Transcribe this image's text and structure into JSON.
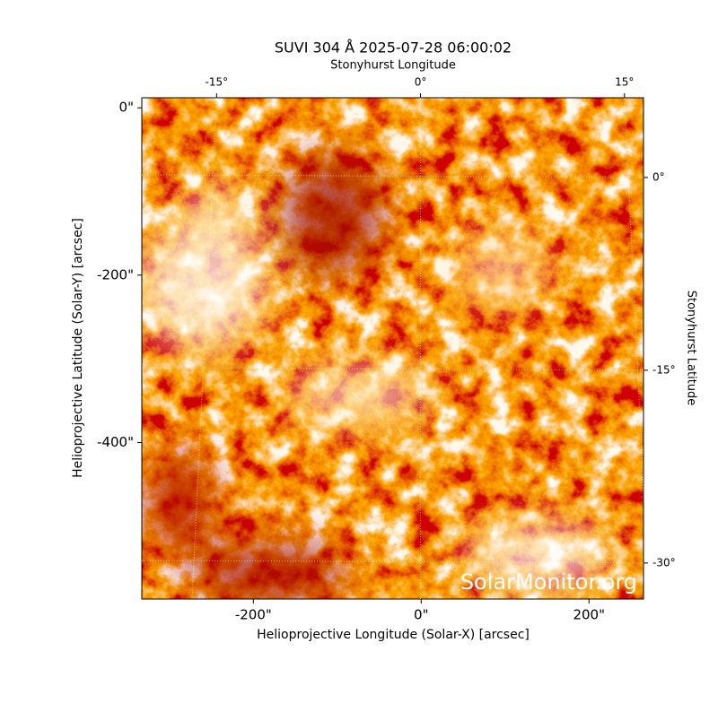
{
  "chart_data": {
    "type": "image",
    "title": "SUVI 304 Å 2025-07-28 06:00:02",
    "x_label": "Helioprojective Longitude (Solar-X) [arcsec]",
    "y_label": "Helioprojective Latitude (Solar-Y) [arcsec]",
    "x2_label": "Stonyhurst Longitude",
    "y2_label": "Stonyhurst Latitude",
    "watermark": "SolarMonitor.org",
    "xlim": [
      -333,
      265
    ],
    "ylim": [
      -587,
      12
    ],
    "xticks": [
      {
        "value": -200,
        "label": "-200\""
      },
      {
        "value": 0,
        "label": "0\""
      },
      {
        "value": 200,
        "label": "200\""
      }
    ],
    "yticks": [
      {
        "value": 0,
        "label": "0\""
      },
      {
        "value": -200,
        "label": "-200\""
      },
      {
        "value": -400,
        "label": "-400\""
      }
    ],
    "x2lim": [
      -20.5,
      16.4
    ],
    "x2ticks": [
      {
        "value": -15,
        "label": "-15°"
      },
      {
        "value": 0,
        "label": "0°"
      },
      {
        "value": 15,
        "label": "15°"
      }
    ],
    "y2lim": [
      6.2,
      -32.8
    ],
    "y2ticks": [
      {
        "value": 0,
        "label": "0°"
      },
      {
        "value": -15,
        "label": "-15°"
      },
      {
        "value": -30,
        "label": "-30°"
      }
    ],
    "grid": true
  }
}
